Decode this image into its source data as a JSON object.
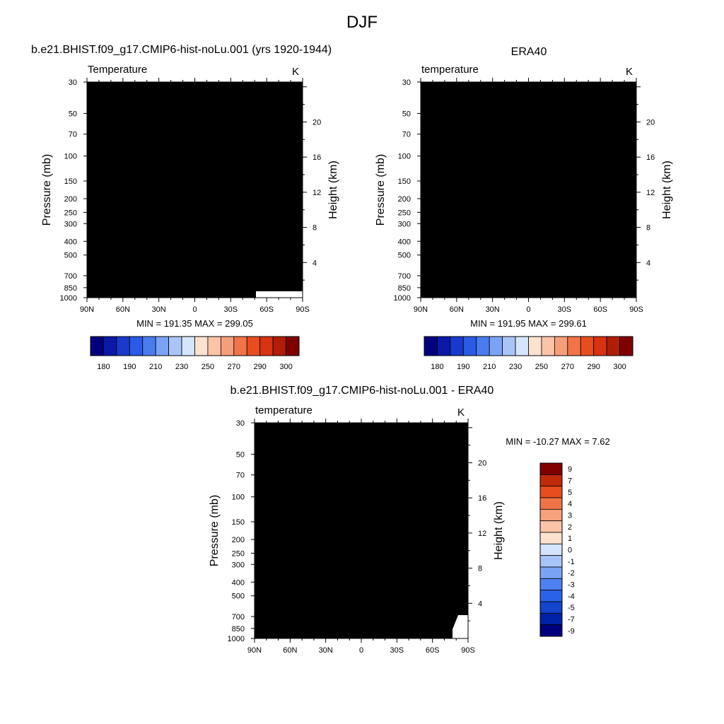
{
  "title": "DJF",
  "panels": [
    {
      "title": "b.e21.BHIST.f09_g17.CMIP6-hist-noLu.001 (yrs 1920-1944)",
      "field": "Temperature",
      "units": "K",
      "stats": "MIN = 191.35  MAX = 299.05"
    },
    {
      "title": "ERA40",
      "field": "temperature",
      "units": "K",
      "stats": "MIN = 191.95  MAX = 299.61"
    },
    {
      "title": "b.e21.BHIST.f09_g17.CMIP6-hist-noLu.001 - ERA40",
      "field": "temperature",
      "units": "K",
      "stats": "MIN = -10.27  MAX =   7.62"
    }
  ],
  "axes": {
    "ylabel": "Pressure (mb)",
    "y2label": "Height (km)",
    "pressure_ticks": [
      "30",
      "50",
      "70",
      "100",
      "150",
      "200",
      "250",
      "300",
      "400",
      "500",
      "700",
      "850",
      "1000"
    ],
    "height_ticks": [
      "20",
      "16",
      "12",
      "8",
      "4"
    ],
    "lat_ticks": [
      "90N",
      "60N",
      "30N",
      "0",
      "30S",
      "60S",
      "90S"
    ]
  },
  "colors": {
    "temperature": [
      "#00007f",
      "#0a1aa6",
      "#1a3acc",
      "#2a5ae6",
      "#4a7cf0",
      "#7ba3f5",
      "#a9c5f8",
      "#d5e6fc",
      "#fde2cf",
      "#fbc3a7",
      "#f69e7a",
      "#f07447",
      "#e84d1f",
      "#d73211",
      "#b11d07",
      "#800000"
    ],
    "difference": [
      "#00007f",
      "#0022a8",
      "#1244cc",
      "#2b63e8",
      "#4d80f0",
      "#7ba3f5",
      "#a7c4f8",
      "#d3e4fc",
      "#fde2cf",
      "#fbc3a7",
      "#f7a17d",
      "#f07447",
      "#e84d1f",
      "#c02a0b",
      "#800000"
    ]
  },
  "temp_colorbar_labels": [
    "180",
    "190",
    "210",
    "230",
    "250",
    "270",
    "290",
    "300"
  ],
  "diff_colorbar_labels": [
    "9",
    "7",
    "5",
    "4",
    "3",
    "2",
    "1",
    "0",
    "-1",
    "-2",
    "-3",
    "-4",
    "-5",
    "-7",
    "-9"
  ],
  "chart_data": [
    {
      "type": "heatmap",
      "title": "b.e21.BHIST.f09_g17.CMIP6-hist-noLu.001 (yrs 1920-1944)",
      "xlabel": "",
      "ylabel": "Pressure (mb)",
      "y2label": "Height (km)",
      "x": [
        "90N",
        "60N",
        "30N",
        "0",
        "30S",
        "60S",
        "90S"
      ],
      "y": [
        30,
        50,
        70,
        100,
        150,
        200,
        250,
        300,
        400,
        500,
        700,
        850,
        1000
      ],
      "min": 191.35,
      "max": 299.05,
      "units": "K",
      "colorbar_levels": [
        180,
        190,
        210,
        230,
        250,
        270,
        290,
        300
      ]
    },
    {
      "type": "heatmap",
      "title": "ERA40",
      "xlabel": "",
      "ylabel": "Pressure (mb)",
      "y2label": "Height (km)",
      "x": [
        "90N",
        "60N",
        "30N",
        "0",
        "30S",
        "60S",
        "90S"
      ],
      "y": [
        30,
        50,
        70,
        100,
        150,
        200,
        250,
        300,
        400,
        500,
        700,
        850,
        1000
      ],
      "min": 191.95,
      "max": 299.61,
      "units": "K",
      "colorbar_levels": [
        180,
        190,
        210,
        230,
        250,
        270,
        290,
        300
      ]
    },
    {
      "type": "heatmap",
      "title": "b.e21.BHIST.f09_g17.CMIP6-hist-noLu.001 - ERA40",
      "xlabel": "",
      "ylabel": "Pressure (mb)",
      "y2label": "Height (km)",
      "x": [
        "90N",
        "60N",
        "30N",
        "0",
        "30S",
        "60S",
        "90S"
      ],
      "y": [
        30,
        50,
        70,
        100,
        150,
        200,
        250,
        300,
        400,
        500,
        700,
        850,
        1000
      ],
      "min": -10.27,
      "max": 7.62,
      "units": "K",
      "colorbar_levels": [
        9,
        7,
        5,
        4,
        3,
        2,
        1,
        0,
        -1,
        -2,
        -3,
        -4,
        -5,
        -7,
        -9
      ]
    }
  ]
}
